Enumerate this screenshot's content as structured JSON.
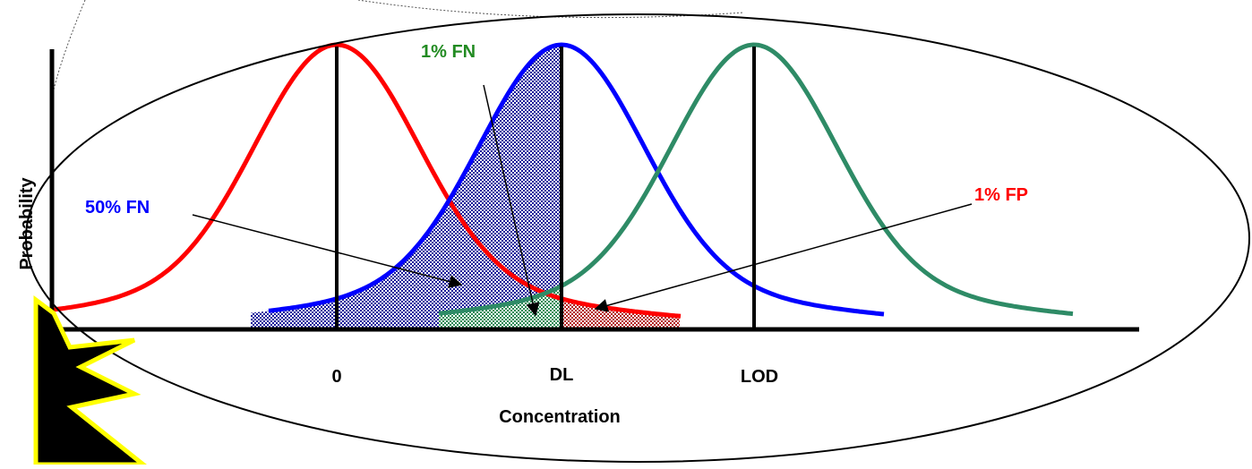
{
  "axes": {
    "y_label": "Probability",
    "x_label": "Concentration",
    "markers": [
      "0",
      "DL",
      "LOD"
    ]
  },
  "annotations": {
    "fn_50": "50% FN",
    "fn_1": "1% FN",
    "fp_1": "1% FP"
  }
}
